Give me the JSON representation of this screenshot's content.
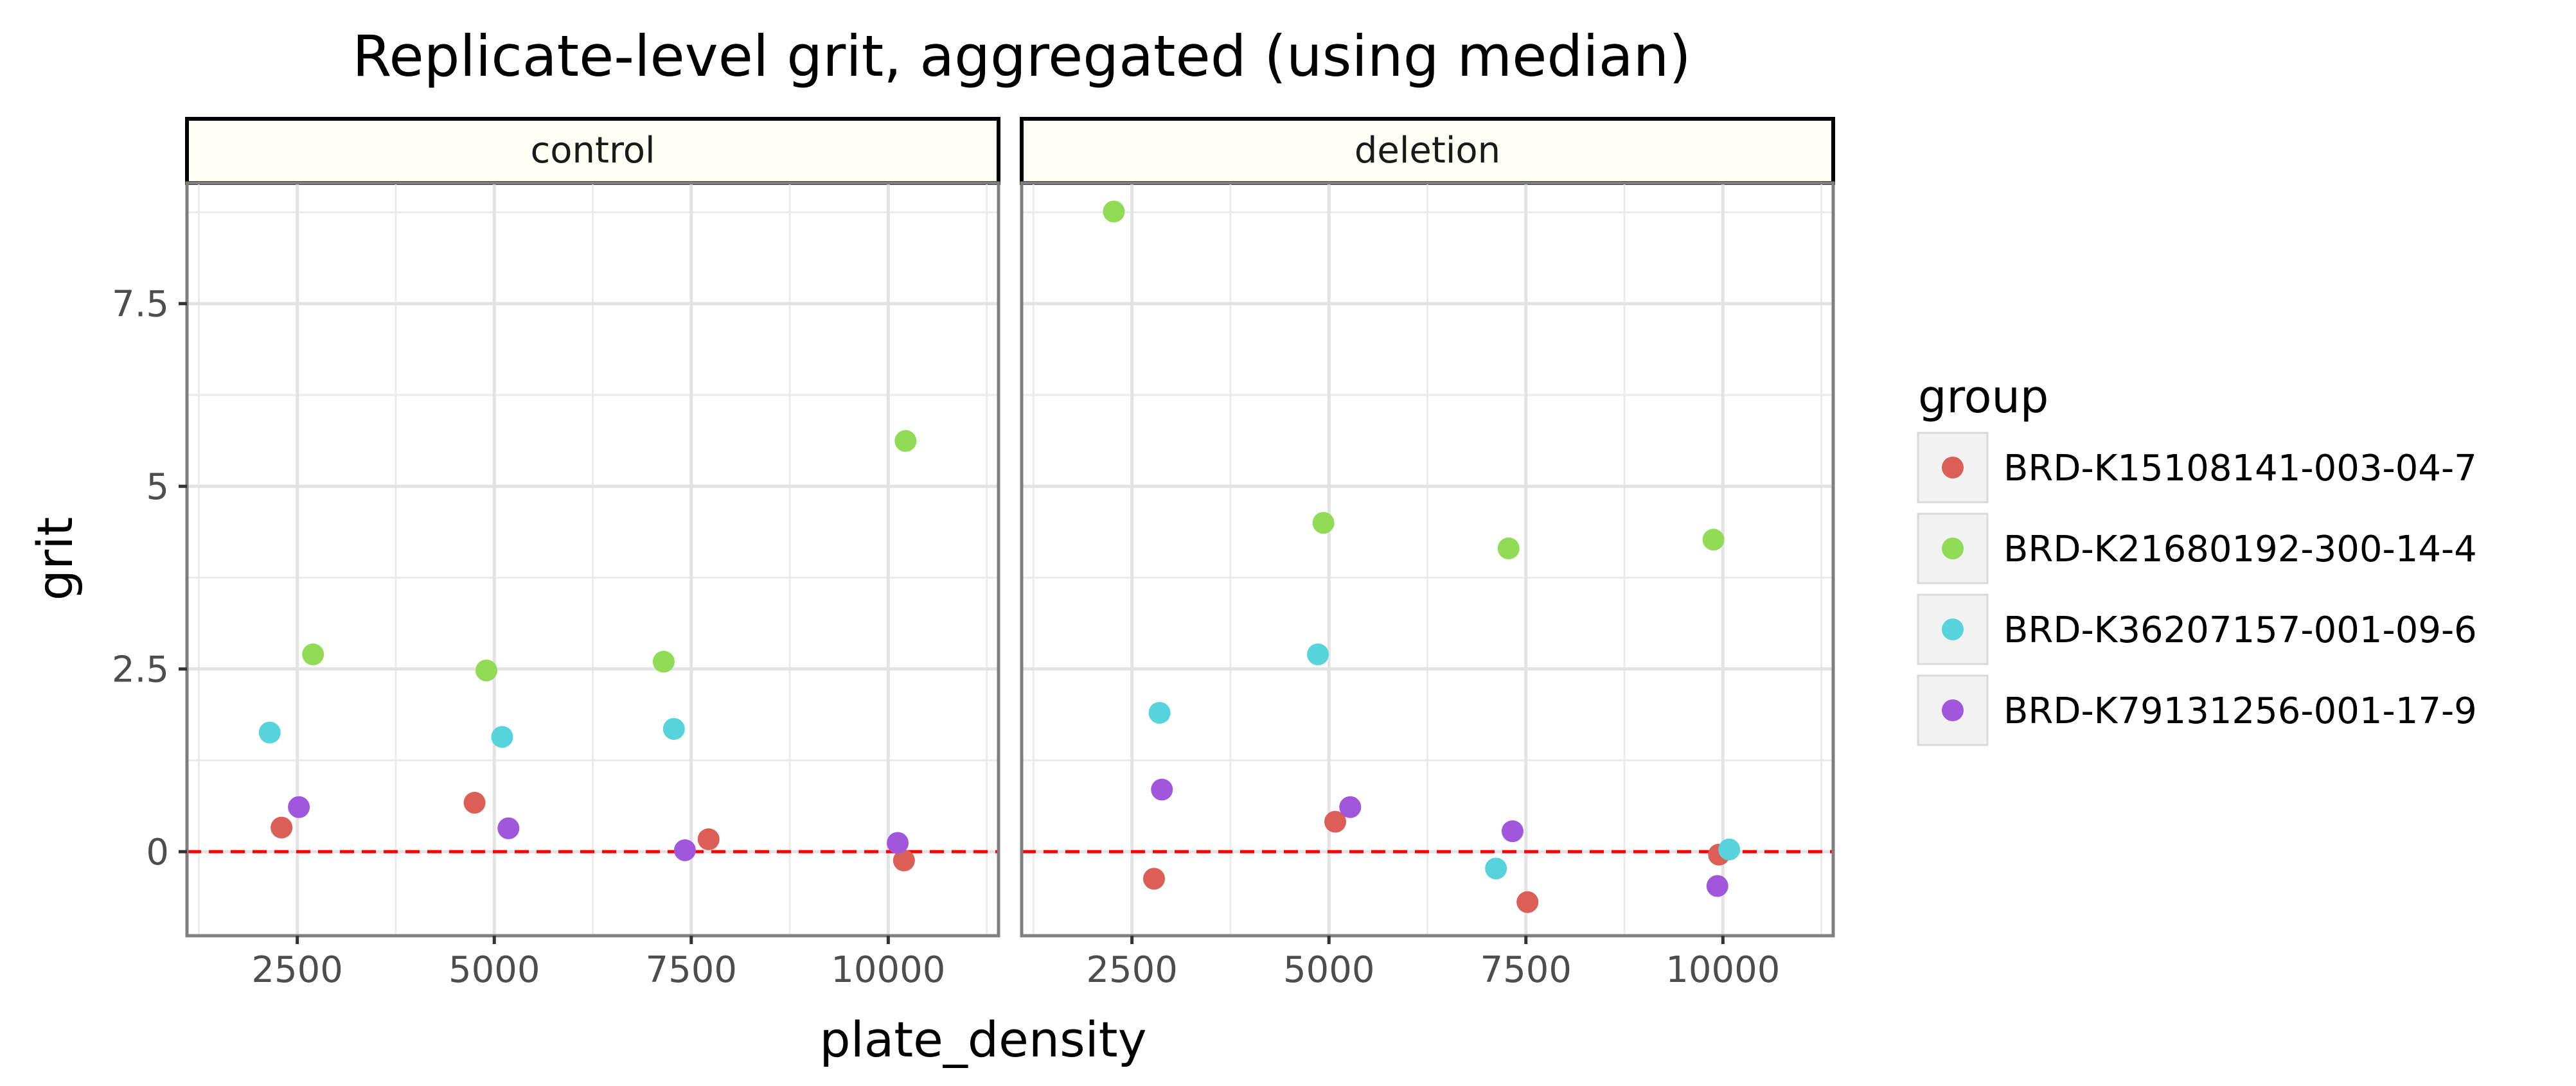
{
  "chart_data": {
    "type": "scatter",
    "title": "Replicate-level grit, aggregated (using median)",
    "xlabel": "plate_density",
    "ylabel": "grit",
    "xlim": [
      1100,
      11400
    ],
    "ylim": [
      -1.15,
      9.15
    ],
    "x_ticks": [
      2500,
      5000,
      7500,
      10000
    ],
    "x_tick_labels": [
      "2500",
      "5000",
      "7500",
      "10000"
    ],
    "y_ticks": [
      0,
      2.5,
      5,
      7.5
    ],
    "y_tick_labels": [
      "0",
      "2.5",
      "5",
      "7.5"
    ],
    "grid": true,
    "reference_line": {
      "y": 0,
      "style": "dashed",
      "color": "#ff0000"
    },
    "legend": {
      "title": "group",
      "placement": "right",
      "entries": [
        {
          "label": "BRD-K15108141-003-04-7",
          "color": "#db5f57"
        },
        {
          "label": "BRD-K21680192-300-14-4",
          "color": "#91db57"
        },
        {
          "label": "BRD-K36207157-001-09-6",
          "color": "#57d3db"
        },
        {
          "label": "BRD-K79131256-001-17-9",
          "color": "#a157db"
        }
      ]
    },
    "panels": [
      {
        "name": "control",
        "series": [
          {
            "group": "BRD-K15108141-003-04-7",
            "color": "#db5f57",
            "points": [
              [
                2300,
                0.33
              ],
              [
                4750,
                0.67
              ],
              [
                7720,
                0.17
              ],
              [
                10200,
                -0.12
              ]
            ]
          },
          {
            "group": "BRD-K21680192-300-14-4",
            "color": "#91db57",
            "points": [
              [
                2700,
                2.7
              ],
              [
                4900,
                2.48
              ],
              [
                7150,
                2.6
              ],
              [
                10220,
                5.62
              ]
            ]
          },
          {
            "group": "BRD-K36207157-001-09-6",
            "color": "#57d3db",
            "points": [
              [
                2150,
                1.63
              ],
              [
                5100,
                1.57
              ],
              [
                7280,
                1.68
              ]
            ]
          },
          {
            "group": "BRD-K79131256-001-17-9",
            "color": "#a157db",
            "points": [
              [
                2520,
                0.61
              ],
              [
                5180,
                0.32
              ],
              [
                7420,
                0.02
              ],
              [
                10120,
                0.12
              ]
            ]
          }
        ]
      },
      {
        "name": "deletion",
        "series": [
          {
            "group": "BRD-K15108141-003-04-7",
            "color": "#db5f57",
            "points": [
              [
                2780,
                -0.37
              ],
              [
                5080,
                0.41
              ],
              [
                7520,
                -0.69
              ],
              [
                9950,
                -0.04
              ]
            ]
          },
          {
            "group": "BRD-K21680192-300-14-4",
            "color": "#91db57",
            "points": [
              [
                2270,
                8.76
              ],
              [
                4930,
                4.5
              ],
              [
                7280,
                4.15
              ],
              [
                9880,
                4.27
              ]
            ]
          },
          {
            "group": "BRD-K36207157-001-09-6",
            "color": "#57d3db",
            "points": [
              [
                2850,
                1.9
              ],
              [
                4860,
                2.7
              ],
              [
                7120,
                -0.23
              ],
              [
                10080,
                0.03
              ]
            ]
          },
          {
            "group": "BRD-K79131256-001-17-9",
            "color": "#a157db",
            "points": [
              [
                2880,
                0.85
              ],
              [
                5270,
                0.61
              ],
              [
                7330,
                0.28
              ],
              [
                9930,
                -0.47
              ]
            ]
          }
        ]
      }
    ]
  }
}
